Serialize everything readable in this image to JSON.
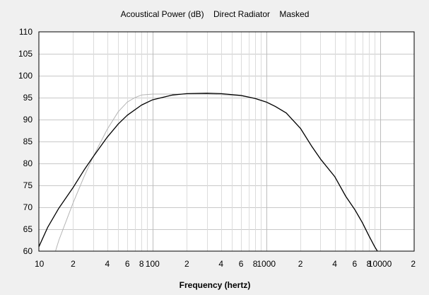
{
  "chart_data": {
    "type": "line",
    "title": "Acoustical Power (dB)    Direct Radiator    Masked",
    "xlabel": "Frequency (hertz)",
    "ylabel": "",
    "x_scale": "log",
    "xlim": [
      10,
      20000
    ],
    "ylim": [
      60,
      110
    ],
    "grid": true,
    "legend": "none",
    "yticks": [
      "60",
      "65",
      "70",
      "75",
      "80",
      "85",
      "90",
      "95",
      "100",
      "105",
      "110"
    ],
    "xtick_labels": [
      {
        "x": 10,
        "label": "10"
      },
      {
        "x": 20,
        "label": "2"
      },
      {
        "x": 40,
        "label": "4"
      },
      {
        "x": 60,
        "label": "6"
      },
      {
        "x": 80,
        "label": "8"
      },
      {
        "x": 100,
        "label": "100"
      },
      {
        "x": 200,
        "label": "2"
      },
      {
        "x": 400,
        "label": "4"
      },
      {
        "x": 600,
        "label": "6"
      },
      {
        "x": 800,
        "label": "8"
      },
      {
        "x": 1000,
        "label": "1000"
      },
      {
        "x": 2000,
        "label": "2"
      },
      {
        "x": 4000,
        "label": "4"
      },
      {
        "x": 6000,
        "label": "6"
      },
      {
        "x": 8000,
        "label": "8"
      },
      {
        "x": 10000,
        "label": "10000"
      },
      {
        "x": 20000,
        "label": "2"
      }
    ],
    "series": [
      {
        "color": "#000000",
        "points": [
          [
            10,
            61.0
          ],
          [
            12,
            65.5
          ],
          [
            15,
            69.8
          ],
          [
            20,
            74.5
          ],
          [
            25,
            78.5
          ],
          [
            30,
            81.5
          ],
          [
            40,
            86.0
          ],
          [
            50,
            89.0
          ],
          [
            60,
            91.0
          ],
          [
            80,
            93.3
          ],
          [
            100,
            94.5
          ],
          [
            150,
            95.6
          ],
          [
            200,
            95.9
          ],
          [
            300,
            96.0
          ],
          [
            400,
            95.9
          ],
          [
            600,
            95.5
          ],
          [
            800,
            94.8
          ],
          [
            1000,
            94.0
          ],
          [
            1200,
            93.0
          ],
          [
            1500,
            91.5
          ],
          [
            2000,
            88.0
          ],
          [
            2500,
            84.0
          ],
          [
            3000,
            81.0
          ],
          [
            4000,
            77.0
          ],
          [
            5000,
            72.5
          ],
          [
            6000,
            69.5
          ],
          [
            7000,
            66.5
          ],
          [
            8000,
            63.5
          ],
          [
            9000,
            61.0
          ],
          [
            9500,
            60.0
          ]
        ]
      },
      {
        "color": "#b4b4b4",
        "points": [
          [
            14,
            60.0
          ],
          [
            15,
            62.5
          ],
          [
            20,
            71.0
          ],
          [
            25,
            77.0
          ],
          [
            30,
            81.5
          ],
          [
            40,
            87.8
          ],
          [
            50,
            91.8
          ],
          [
            60,
            94.0
          ],
          [
            70,
            95.0
          ],
          [
            80,
            95.6
          ],
          [
            100,
            95.8
          ],
          [
            200,
            95.8
          ],
          [
            300,
            95.8
          ],
          [
            400,
            95.7
          ],
          [
            600,
            95.4
          ],
          [
            800,
            94.8
          ],
          [
            1000,
            94.0
          ],
          [
            1200,
            93.0
          ],
          [
            1500,
            91.5
          ],
          [
            2000,
            88.0
          ],
          [
            2500,
            84.0
          ],
          [
            3000,
            81.0
          ],
          [
            4000,
            77.0
          ],
          [
            5000,
            72.5
          ],
          [
            6000,
            69.5
          ],
          [
            7000,
            66.5
          ],
          [
            8000,
            63.5
          ],
          [
            9000,
            61.0
          ],
          [
            9500,
            60.0
          ]
        ]
      }
    ]
  }
}
